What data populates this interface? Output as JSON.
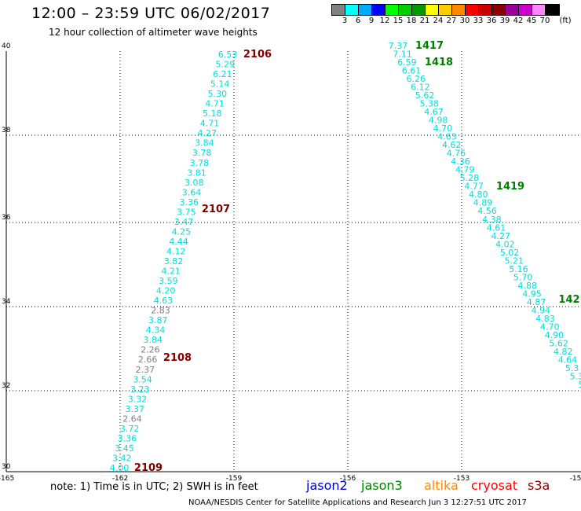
{
  "header": {
    "title": "12:00 – 23:59 UTC 06/02/2017",
    "subtitle": "12 hour collection of altimeter wave heights"
  },
  "legend": {
    "unit_label": "(ft)",
    "ticks": [
      "3",
      "6",
      "9",
      "12",
      "15",
      "18",
      "21",
      "24",
      "27",
      "30",
      "33",
      "36",
      "39",
      "42",
      "45",
      "70"
    ],
    "colors": [
      "#808080",
      "#00ffff",
      "#00aaff",
      "#0000ff",
      "#00ff00",
      "#00cc00",
      "#009900",
      "#ffff00",
      "#ffcc00",
      "#ff8800",
      "#ff0000",
      "#cc0000",
      "#880000",
      "#990099",
      "#cc00cc",
      "#ff88ff",
      "#000000"
    ]
  },
  "axes": {
    "x_ticks": [
      "-165",
      "-162",
      "-159",
      "-156",
      "-153",
      "-15"
    ],
    "y_ticks": [
      "40",
      "38",
      "36",
      "34",
      "32",
      "30"
    ]
  },
  "track_labels": [
    {
      "id": "2106",
      "color": "#800000"
    },
    {
      "id": "2107",
      "color": "#800000"
    },
    {
      "id": "2108",
      "color": "#800000"
    },
    {
      "id": "2109",
      "color": "#800000"
    },
    {
      "id": "1417",
      "color": "#008000"
    },
    {
      "id": "1418",
      "color": "#008000"
    },
    {
      "id": "1419",
      "color": "#008000"
    },
    {
      "id": "142",
      "color": "#008000"
    }
  ],
  "tracks": [
    {
      "name": "track-left",
      "values": [
        {
          "v": "6.53",
          "c": "#00dddd"
        },
        {
          "v": "5.29",
          "c": "#00dddd"
        },
        {
          "v": "6.21",
          "c": "#00dddd"
        },
        {
          "v": "5.14",
          "c": "#00dddd"
        },
        {
          "v": "5.30",
          "c": "#00dddd"
        },
        {
          "v": "4.71",
          "c": "#00dddd"
        },
        {
          "v": "5.18",
          "c": "#00dddd"
        },
        {
          "v": "4.71",
          "c": "#00dddd"
        },
        {
          "v": "4.27",
          "c": "#00dddd"
        },
        {
          "v": "3.84",
          "c": "#00dddd"
        },
        {
          "v": "3.78",
          "c": "#00dddd"
        },
        {
          "v": "3.78",
          "c": "#00dddd"
        },
        {
          "v": "3.81",
          "c": "#00dddd"
        },
        {
          "v": "3.08",
          "c": "#00dddd"
        },
        {
          "v": "3.64",
          "c": "#00dddd"
        },
        {
          "v": "3.36",
          "c": "#00dddd"
        },
        {
          "v": "3.75",
          "c": "#00dddd"
        },
        {
          "v": "3.47",
          "c": "#00dddd"
        },
        {
          "v": "4.25",
          "c": "#00dddd"
        },
        {
          "v": "4.44",
          "c": "#00dddd"
        },
        {
          "v": "4.12",
          "c": "#00dddd"
        },
        {
          "v": "3.82",
          "c": "#00dddd"
        },
        {
          "v": "4.21",
          "c": "#00dddd"
        },
        {
          "v": "3.59",
          "c": "#00dddd"
        },
        {
          "v": "4.20",
          "c": "#00dddd"
        },
        {
          "v": "4.63",
          "c": "#00dddd"
        },
        {
          "v": "2.83",
          "c": "#808080"
        },
        {
          "v": "3.87",
          "c": "#00dddd"
        },
        {
          "v": "4.34",
          "c": "#00dddd"
        },
        {
          "v": "3.84",
          "c": "#00dddd"
        },
        {
          "v": "2.26",
          "c": "#808080"
        },
        {
          "v": "2.66",
          "c": "#808080"
        },
        {
          "v": "2.37",
          "c": "#808080"
        },
        {
          "v": "3.54",
          "c": "#00dddd"
        },
        {
          "v": "3.23",
          "c": "#00dddd"
        },
        {
          "v": "3.32",
          "c": "#00dddd"
        },
        {
          "v": "3.37",
          "c": "#00dddd"
        },
        {
          "v": "2.64",
          "c": "#808080"
        },
        {
          "v": "3.72",
          "c": "#00dddd"
        },
        {
          "v": "3.36",
          "c": "#00dddd"
        },
        {
          "v": "3.45",
          "c": "#00dddd"
        },
        {
          "v": "3.42",
          "c": "#00dddd"
        },
        {
          "v": "4.00",
          "c": "#00dddd"
        }
      ]
    },
    {
      "name": "track-right",
      "values": [
        {
          "v": "7.37",
          "c": "#00dddd"
        },
        {
          "v": "7.11",
          "c": "#00dddd"
        },
        {
          "v": "6.59",
          "c": "#00dddd"
        },
        {
          "v": "6.61",
          "c": "#00dddd"
        },
        {
          "v": "6.26",
          "c": "#00dddd"
        },
        {
          "v": "6.12",
          "c": "#00dddd"
        },
        {
          "v": "5.62",
          "c": "#00dddd"
        },
        {
          "v": "5.38",
          "c": "#00dddd"
        },
        {
          "v": "4.67",
          "c": "#00dddd"
        },
        {
          "v": "4.98",
          "c": "#00dddd"
        },
        {
          "v": "4.70",
          "c": "#00dddd"
        },
        {
          "v": "4.63",
          "c": "#00dddd"
        },
        {
          "v": "4.62",
          "c": "#00dddd"
        },
        {
          "v": "4.76",
          "c": "#00dddd"
        },
        {
          "v": "4.36",
          "c": "#00dddd"
        },
        {
          "v": "4.79",
          "c": "#00dddd"
        },
        {
          "v": "5.28",
          "c": "#00dddd"
        },
        {
          "v": "4.77",
          "c": "#00dddd"
        },
        {
          "v": "4.80",
          "c": "#00dddd"
        },
        {
          "v": "4.89",
          "c": "#00dddd"
        },
        {
          "v": "4.56",
          "c": "#00dddd"
        },
        {
          "v": "4.38",
          "c": "#00dddd"
        },
        {
          "v": "4.61",
          "c": "#00dddd"
        },
        {
          "v": "4.27",
          "c": "#00dddd"
        },
        {
          "v": "4.02",
          "c": "#00dddd"
        },
        {
          "v": "5.02",
          "c": "#00dddd"
        },
        {
          "v": "5.21",
          "c": "#00dddd"
        },
        {
          "v": "5.16",
          "c": "#00dddd"
        },
        {
          "v": "5.70",
          "c": "#00dddd"
        },
        {
          "v": "4.88",
          "c": "#00dddd"
        },
        {
          "v": "4.95",
          "c": "#00dddd"
        },
        {
          "v": "4.87",
          "c": "#00dddd"
        },
        {
          "v": "4.94",
          "c": "#00dddd"
        },
        {
          "v": "4.83",
          "c": "#00dddd"
        },
        {
          "v": "4.70",
          "c": "#00dddd"
        },
        {
          "v": "4.90",
          "c": "#00dddd"
        },
        {
          "v": "5.62",
          "c": "#00dddd"
        },
        {
          "v": "4.82",
          "c": "#00dddd"
        },
        {
          "v": "4.64",
          "c": "#00dddd"
        },
        {
          "v": "5.3",
          "c": "#00dddd"
        },
        {
          "v": "5.3",
          "c": "#00dddd"
        },
        {
          "v": "5",
          "c": "#00dddd"
        }
      ]
    }
  ],
  "footer": {
    "note": "note:  1) Time is in UTC;  2) SWH is in feet",
    "satellites": [
      {
        "name": "jason2",
        "color": "#0000cc"
      },
      {
        "name": "jason3",
        "color": "#008000"
      },
      {
        "name": "altika",
        "color": "#ff8800"
      },
      {
        "name": "cryosat",
        "color": "#ff0000"
      },
      {
        "name": "s3a",
        "color": "#880000"
      }
    ],
    "credit": "NOAA/NESDIS Center for Satellite Applications and Research    Jun  3 12:27:51 UTC 2017"
  }
}
